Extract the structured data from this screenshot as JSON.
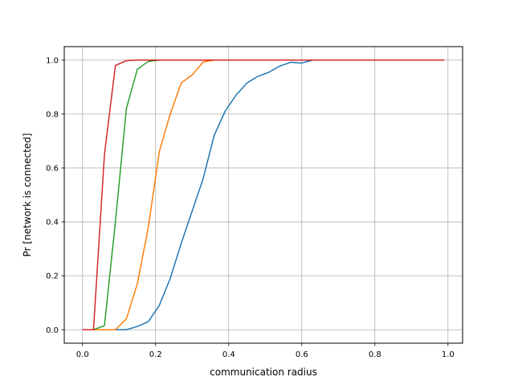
{
  "chart_data": {
    "type": "line",
    "title": "",
    "xlabel": "communication radius",
    "ylabel": "Pr [network is connected]",
    "xlim": [
      -0.05,
      1.04
    ],
    "ylim": [
      -0.05,
      1.05
    ],
    "xticks": [
      0.0,
      0.2,
      0.4,
      0.6,
      0.8,
      1.0
    ],
    "xtick_labels": [
      "0.0",
      "0.2",
      "0.4",
      "0.6",
      "0.8",
      "1.0"
    ],
    "yticks": [
      0.0,
      0.2,
      0.4,
      0.6,
      0.8,
      1.0
    ],
    "ytick_labels": [
      "0.0",
      "0.2",
      "0.4",
      "0.6",
      "0.8",
      "1.0"
    ],
    "grid": true,
    "legend": false,
    "x": [
      0.0,
      0.03,
      0.06,
      0.09,
      0.12,
      0.15,
      0.18,
      0.21,
      0.24,
      0.27,
      0.3,
      0.33,
      0.36,
      0.39,
      0.42,
      0.45,
      0.48,
      0.51,
      0.54,
      0.57,
      0.6,
      0.63,
      0.66,
      0.69,
      0.72,
      0.75,
      0.78,
      0.81,
      0.84,
      0.87,
      0.9,
      0.93,
      0.96,
      0.99
    ],
    "series": [
      {
        "color": "#1f77b4",
        "values": [
          0.0,
          0.0,
          0.0,
          0.0,
          0.0,
          0.012,
          0.03,
          0.09,
          0.19,
          0.32,
          0.44,
          0.56,
          0.72,
          0.81,
          0.87,
          0.915,
          0.94,
          0.955,
          0.978,
          0.992,
          0.989,
          1.0,
          1.0,
          1.0,
          1.0,
          1.0,
          1.0,
          1.0,
          1.0,
          1.0,
          1.0,
          1.0,
          1.0,
          1.0
        ]
      },
      {
        "color": "#ff7f0e",
        "values": [
          0.0,
          0.0,
          0.0,
          0.0,
          0.04,
          0.17,
          0.38,
          0.66,
          0.8,
          0.915,
          0.945,
          0.993,
          1.0,
          1.0,
          1.0,
          1.0,
          1.0,
          1.0,
          1.0,
          1.0,
          1.0,
          1.0,
          1.0,
          1.0,
          1.0,
          1.0,
          1.0,
          1.0,
          1.0,
          1.0,
          1.0,
          1.0,
          1.0,
          1.0
        ]
      },
      {
        "color": "#2ca02c",
        "values": [
          0.0,
          0.0,
          0.015,
          0.4,
          0.82,
          0.966,
          0.995,
          1.0,
          1.0,
          1.0,
          1.0,
          1.0,
          1.0,
          1.0,
          1.0,
          1.0,
          1.0,
          1.0,
          1.0,
          1.0,
          1.0,
          1.0,
          1.0,
          1.0,
          1.0,
          1.0,
          1.0,
          1.0,
          1.0,
          1.0,
          1.0,
          1.0,
          1.0,
          1.0
        ]
      },
      {
        "color": "#d62728",
        "values": [
          0.0,
          0.0,
          0.65,
          0.98,
          0.998,
          1.0,
          1.0,
          1.0,
          1.0,
          1.0,
          1.0,
          1.0,
          1.0,
          1.0,
          1.0,
          1.0,
          1.0,
          1.0,
          1.0,
          1.0,
          1.0,
          1.0,
          1.0,
          1.0,
          1.0,
          1.0,
          1.0,
          1.0,
          1.0,
          1.0,
          1.0,
          1.0,
          1.0,
          1.0
        ]
      }
    ]
  }
}
